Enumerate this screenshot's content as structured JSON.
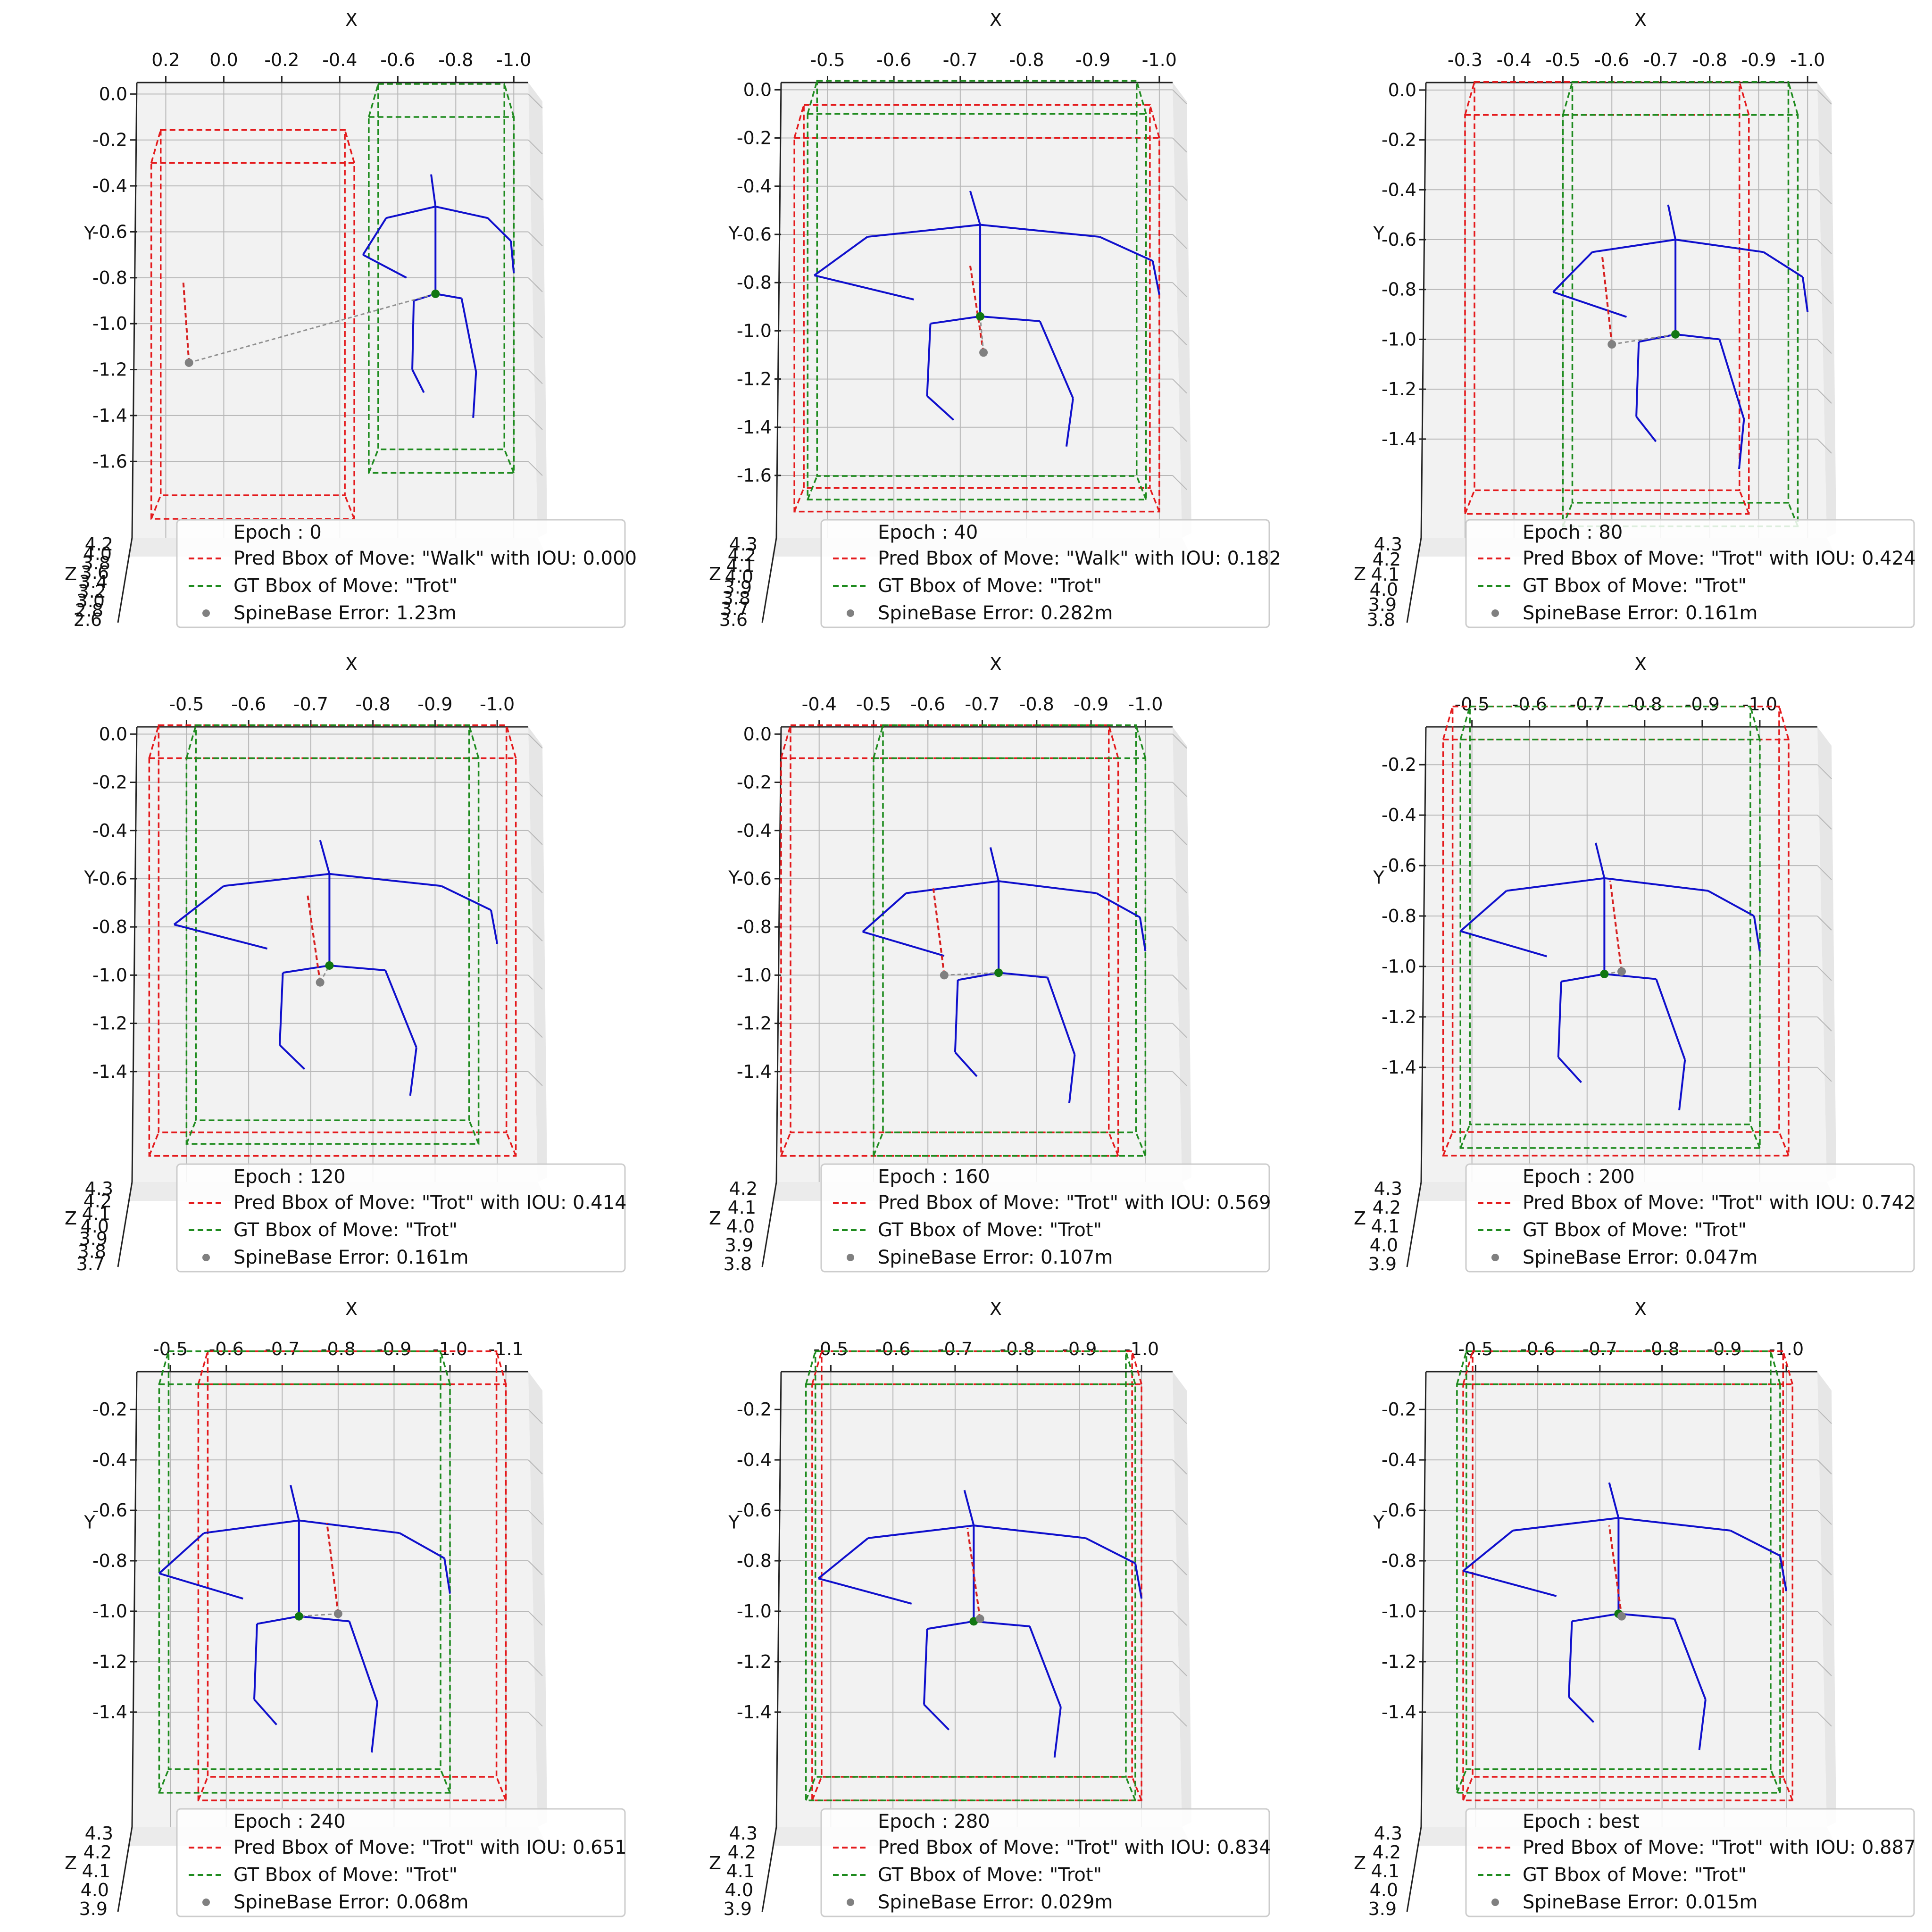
{
  "figure": {
    "colors": {
      "pred_box": "#e41a1c",
      "gt_box": "#1f8b1f",
      "skeleton": "#1010cc",
      "pred_spine": "#d62020",
      "spine_marker": "#808080",
      "gt_marker": "#117711",
      "error_line": "#909090",
      "pane": "#f2f2f2",
      "grid": "#b8b8b8"
    }
  },
  "chart_data": [
    {
      "type": "scatter",
      "view": "3d-skeleton",
      "xlabel": "X",
      "ylabel": "Y",
      "zlabel": "Z",
      "x_ticks": [
        "0.2",
        "0.0",
        "-0.2",
        "-0.4",
        "-0.6",
        "-0.8",
        "-1.0"
      ],
      "y_ticks": [
        "0.0",
        "-0.2",
        "-0.4",
        "-0.6",
        "-0.8",
        "-1.0",
        "-1.2",
        "-1.4",
        "-1.6"
      ],
      "z_ticks": [
        "4.2",
        "4.0",
        "3.8",
        "3.6",
        "3.4",
        "3.2",
        "3.0",
        "2.8",
        "2.6"
      ],
      "xlim": [
        0.3,
        -1.05
      ],
      "ylim": [
        0.05,
        -1.85
      ],
      "pred_box": {
        "x": [
          0.25,
          -0.45
        ],
        "y": [
          -0.3,
          -1.85
        ]
      },
      "gt_box": {
        "x": [
          -0.5,
          -1.0
        ],
        "y": [
          -0.1,
          -1.65
        ]
      },
      "gt_spine": {
        "x": -0.73,
        "y": -0.87
      },
      "pred_spine": {
        "x": 0.12,
        "y": -1.17
      },
      "legend": {
        "epoch": "Epoch : 0",
        "pred": "Pred Bbox of Move: \"Walk\" with IOU: 0.000",
        "gt": "GT Bbox of Move: \"Trot\"",
        "error": "SpineBase Error: 1.23m"
      }
    },
    {
      "type": "scatter",
      "view": "3d-skeleton",
      "xlabel": "X",
      "ylabel": "Y",
      "zlabel": "Z",
      "x_ticks": [
        "-0.5",
        "-0.6",
        "-0.7",
        "-0.8",
        "-0.9",
        "-1.0"
      ],
      "y_ticks": [
        "0.0",
        "-0.2",
        "-0.4",
        "-0.6",
        "-0.8",
        "-1.0",
        "-1.2",
        "-1.4",
        "-1.6"
      ],
      "z_ticks": [
        "4.3",
        "4.2",
        "4.1",
        "4.0",
        "3.9",
        "3.8",
        "3.7",
        "3.6"
      ],
      "xlim": [
        -0.43,
        -1.02
      ],
      "ylim": [
        0.03,
        -1.78
      ],
      "pred_box": {
        "x": [
          -0.45,
          -1.0
        ],
        "y": [
          -0.2,
          -1.75
        ]
      },
      "gt_box": {
        "x": [
          -0.47,
          -0.98
        ],
        "y": [
          -0.1,
          -1.7
        ]
      },
      "gt_spine": {
        "x": -0.73,
        "y": -0.94
      },
      "pred_spine": {
        "x": -0.735,
        "y": -1.09
      },
      "legend": {
        "epoch": "Epoch : 40",
        "pred": "Pred Bbox of Move: \"Walk\" with IOU: 0.182",
        "gt": "GT Bbox of Move: \"Trot\"",
        "error": "SpineBase Error: 0.282m"
      }
    },
    {
      "type": "scatter",
      "view": "3d-skeleton",
      "xlabel": "X",
      "ylabel": "Y",
      "zlabel": "Z",
      "x_ticks": [
        "-0.3",
        "-0.4",
        "-0.5",
        "-0.6",
        "-0.7",
        "-0.8",
        "-0.9",
        "-1.0"
      ],
      "y_ticks": [
        "0.0",
        "-0.2",
        "-0.4",
        "-0.6",
        "-0.8",
        "-1.0",
        "-1.2",
        "-1.4"
      ],
      "z_ticks": [
        "4.3",
        "4.2",
        "4.1",
        "4.0",
        "3.9",
        "3.8"
      ],
      "xlim": [
        -0.22,
        -1.02
      ],
      "ylim": [
        0.03,
        -1.72
      ],
      "pred_box": {
        "x": [
          -0.3,
          -0.88
        ],
        "y": [
          -0.1,
          -1.7
        ]
      },
      "gt_box": {
        "x": [
          -0.5,
          -0.98
        ],
        "y": [
          -0.1,
          -1.75
        ]
      },
      "gt_spine": {
        "x": -0.73,
        "y": -0.98
      },
      "pred_spine": {
        "x": -0.6,
        "y": -1.02
      },
      "legend": {
        "epoch": "Epoch : 80",
        "pred": "Pred Bbox of Move: \"Trot\" with IOU: 0.424",
        "gt": "GT Bbox of Move: \"Trot\"",
        "error": "SpineBase Error: 0.161m"
      }
    },
    {
      "type": "scatter",
      "view": "3d-skeleton",
      "xlabel": "X",
      "ylabel": "Y",
      "zlabel": "Z",
      "x_ticks": [
        "-0.5",
        "-0.6",
        "-0.7",
        "-0.8",
        "-0.9",
        "-1.0"
      ],
      "y_ticks": [
        "0.0",
        "-0.2",
        "-0.4",
        "-0.6",
        "-0.8",
        "-1.0",
        "-1.2",
        "-1.4"
      ],
      "z_ticks": [
        "4.3",
        "4.2",
        "4.1",
        "4.0",
        "3.9",
        "3.8",
        "3.7"
      ],
      "xlim": [
        -0.42,
        -1.05
      ],
      "ylim": [
        0.03,
        -1.78
      ],
      "pred_box": {
        "x": [
          -0.44,
          -1.03
        ],
        "y": [
          -0.1,
          -1.75
        ]
      },
      "gt_box": {
        "x": [
          -0.5,
          -0.97
        ],
        "y": [
          -0.1,
          -1.7
        ]
      },
      "gt_spine": {
        "x": -0.73,
        "y": -0.96
      },
      "pred_spine": {
        "x": -0.715,
        "y": -1.03
      },
      "legend": {
        "epoch": "Epoch : 120",
        "pred": "Pred Bbox of Move: \"Trot\" with IOU: 0.414",
        "gt": "GT Bbox of Move: \"Trot\"",
        "error": "SpineBase Error: 0.161m"
      }
    },
    {
      "type": "scatter",
      "view": "3d-skeleton",
      "xlabel": "X",
      "ylabel": "Y",
      "zlabel": "Z",
      "x_ticks": [
        "-0.4",
        "-0.5",
        "-0.6",
        "-0.7",
        "-0.8",
        "-0.9",
        "-1.0"
      ],
      "y_ticks": [
        "0.0",
        "-0.2",
        "-0.4",
        "-0.6",
        "-0.8",
        "-1.0",
        "-1.2",
        "-1.4"
      ],
      "z_ticks": [
        "4.2",
        "4.1",
        "4.0",
        "3.9",
        "3.8"
      ],
      "xlim": [
        -0.33,
        -1.05
      ],
      "ylim": [
        0.03,
        -1.78
      ],
      "pred_box": {
        "x": [
          -0.33,
          -0.95
        ],
        "y": [
          -0.1,
          -1.75
        ]
      },
      "gt_box": {
        "x": [
          -0.5,
          -1.0
        ],
        "y": [
          -0.1,
          -1.75
        ]
      },
      "gt_spine": {
        "x": -0.73,
        "y": -0.99
      },
      "pred_spine": {
        "x": -0.63,
        "y": -1.0
      },
      "legend": {
        "epoch": "Epoch : 160",
        "pred": "Pred Bbox of Move: \"Trot\" with IOU: 0.569",
        "gt": "GT Bbox of Move: \"Trot\"",
        "error": "SpineBase Error: 0.107m"
      }
    },
    {
      "type": "scatter",
      "view": "3d-skeleton",
      "xlabel": "X",
      "ylabel": "Y",
      "zlabel": "Z",
      "x_ticks": [
        "-0.5",
        "-0.6",
        "-0.7",
        "-0.8",
        "-0.9",
        "-1.0"
      ],
      "y_ticks": [
        "-0.2",
        "-0.4",
        "-0.6",
        "-0.8",
        "-1.0",
        "-1.2",
        "-1.4"
      ],
      "z_ticks": [
        "4.3",
        "4.2",
        "4.1",
        "4.0",
        "3.9"
      ],
      "xlim": [
        -0.42,
        -1.1
      ],
      "ylim": [
        -0.05,
        -1.78
      ],
      "pred_box": {
        "x": [
          -0.45,
          -1.05
        ],
        "y": [
          -0.1,
          -1.75
        ]
      },
      "gt_box": {
        "x": [
          -0.48,
          -1.0
        ],
        "y": [
          -0.1,
          -1.72
        ]
      },
      "gt_spine": {
        "x": -0.73,
        "y": -1.03
      },
      "pred_spine": {
        "x": -0.76,
        "y": -1.02
      },
      "legend": {
        "epoch": "Epoch : 200",
        "pred": "Pred Bbox of Move: \"Trot\" with IOU: 0.742",
        "gt": "GT Bbox of Move: \"Trot\"",
        "error": "SpineBase Error: 0.047m"
      }
    },
    {
      "type": "scatter",
      "view": "3d-skeleton",
      "xlabel": "X",
      "ylabel": "Y",
      "zlabel": "Z",
      "x_ticks": [
        "-0.5",
        "-0.6",
        "-0.7",
        "-0.8",
        "-0.9",
        "-1.0",
        "-1.1"
      ],
      "y_ticks": [
        "-0.2",
        "-0.4",
        "-0.6",
        "-0.8",
        "-1.0",
        "-1.2",
        "-1.4"
      ],
      "z_ticks": [
        "4.3",
        "4.2",
        "4.1",
        "4.0",
        "3.9"
      ],
      "xlim": [
        -0.44,
        -1.14
      ],
      "ylim": [
        -0.05,
        -1.78
      ],
      "pred_box": {
        "x": [
          -0.55,
          -1.1
        ],
        "y": [
          -0.1,
          -1.75
        ]
      },
      "gt_box": {
        "x": [
          -0.48,
          -1.0
        ],
        "y": [
          -0.1,
          -1.72
        ]
      },
      "gt_spine": {
        "x": -0.73,
        "y": -1.02
      },
      "pred_spine": {
        "x": -0.8,
        "y": -1.01
      },
      "legend": {
        "epoch": "Epoch : 240",
        "pred": "Pred Bbox of Move: \"Trot\" with IOU: 0.651",
        "gt": "GT Bbox of Move: \"Trot\"",
        "error": "SpineBase Error: 0.068m"
      }
    },
    {
      "type": "scatter",
      "view": "3d-skeleton",
      "xlabel": "X",
      "ylabel": "Y",
      "zlabel": "Z",
      "x_ticks": [
        "-0.5",
        "-0.6",
        "-0.7",
        "-0.8",
        "-0.9",
        "-1.0"
      ],
      "y_ticks": [
        "-0.2",
        "-0.4",
        "-0.6",
        "-0.8",
        "-1.0",
        "-1.2",
        "-1.4"
      ],
      "z_ticks": [
        "4.3",
        "4.2",
        "4.1",
        "4.0",
        "3.9"
      ],
      "xlim": [
        -0.42,
        -1.05
      ],
      "ylim": [
        -0.05,
        -1.78
      ],
      "pred_box": {
        "x": [
          -0.47,
          -1.0
        ],
        "y": [
          -0.1,
          -1.75
        ]
      },
      "gt_box": {
        "x": [
          -0.46,
          -0.99
        ],
        "y": [
          -0.1,
          -1.75
        ]
      },
      "gt_spine": {
        "x": -0.73,
        "y": -1.04
      },
      "pred_spine": {
        "x": -0.74,
        "y": -1.03
      },
      "legend": {
        "epoch": "Epoch : 280",
        "pred": "Pred Bbox of Move: \"Trot\" with IOU: 0.834",
        "gt": "GT Bbox of Move: \"Trot\"",
        "error": "SpineBase Error: 0.029m"
      }
    },
    {
      "type": "scatter",
      "view": "3d-skeleton",
      "xlabel": "X",
      "ylabel": "Y",
      "zlabel": "Z",
      "x_ticks": [
        "-0.5",
        "-0.6",
        "-0.7",
        "-0.8",
        "-0.9",
        "-1.0"
      ],
      "y_ticks": [
        "-0.2",
        "-0.4",
        "-0.6",
        "-0.8",
        "-1.0",
        "-1.2",
        "-1.4"
      ],
      "z_ticks": [
        "4.3",
        "4.2",
        "4.1",
        "4.0",
        "3.9"
      ],
      "xlim": [
        -0.42,
        -1.05
      ],
      "ylim": [
        -0.05,
        -1.78
      ],
      "pred_box": {
        "x": [
          -0.48,
          -1.01
        ],
        "y": [
          -0.1,
          -1.75
        ]
      },
      "gt_box": {
        "x": [
          -0.47,
          -0.99
        ],
        "y": [
          -0.1,
          -1.72
        ]
      },
      "gt_spine": {
        "x": -0.73,
        "y": -1.01
      },
      "pred_spine": {
        "x": -0.735,
        "y": -1.02
      },
      "legend": {
        "epoch": "Epoch : best",
        "pred": "Pred Bbox of Move: \"Trot\" with IOU: 0.887",
        "gt": "GT Bbox of Move: \"Trot\"",
        "error": "SpineBase Error: 0.015m"
      }
    }
  ]
}
